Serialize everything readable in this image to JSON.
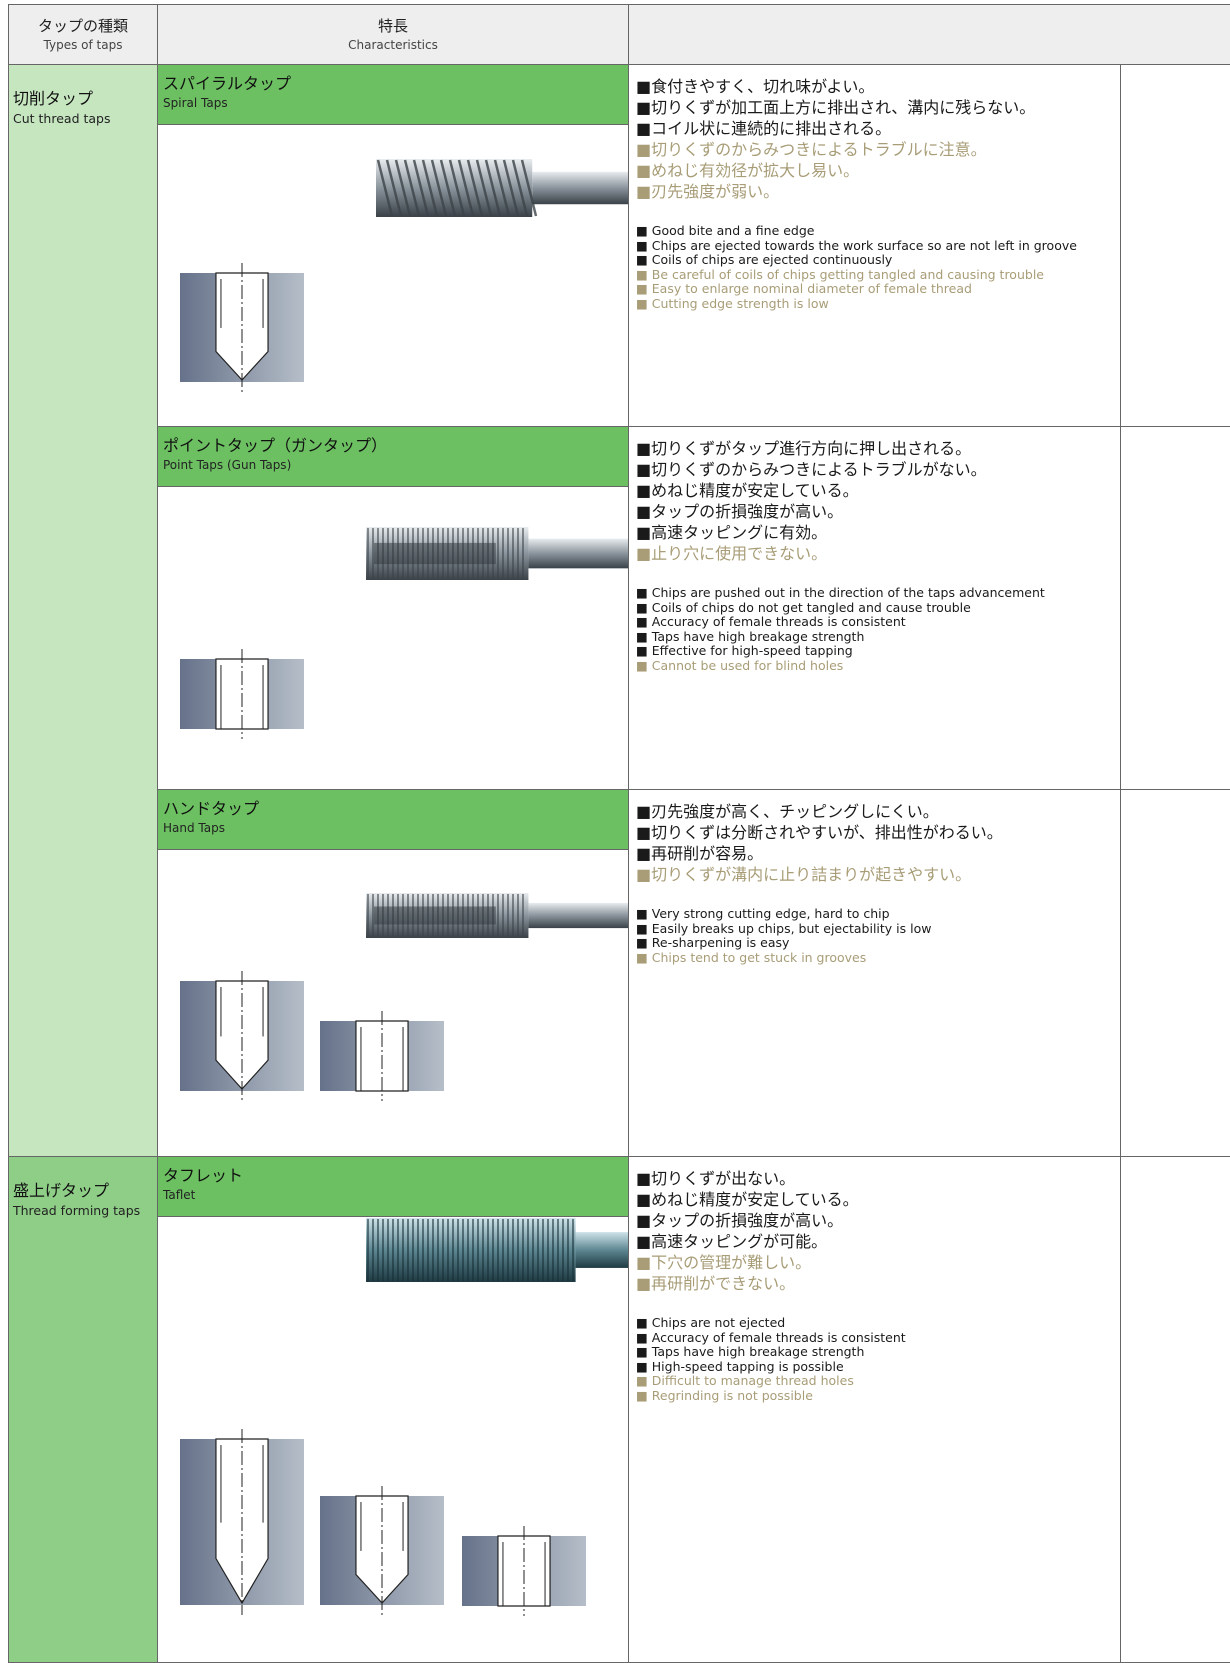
{
  "header": {
    "types_ja": "タップの種類",
    "types_en": "Types of taps",
    "characteristics_ja": "特長",
    "characteristics_en": "Characteristics"
  },
  "groups": [
    {
      "name_ja": "切削タップ",
      "name_en": "Cut thread taps",
      "rows": [
        {
          "name_ja": "スパイラルタップ",
          "name_en": "Spiral Taps",
          "features_ja": [
            "■食付きやすく、切れ味がよい。",
            "■切りくずが加工面上方に排出され、溝内に残らない。",
            "■コイル状に連続的に排出される。"
          ],
          "cautions_ja": [
            "■切りくずのからみつきによるトラブルに注意。",
            "■めねじ有効径が拡大し易い。",
            "■刃先強度が弱い。"
          ],
          "features_en": [
            "■ Good bite and a fine edge",
            "■ Chips are ejected towards the work surface so are not left in groove",
            "■ Coils of chips are ejected continuously"
          ],
          "cautions_en": [
            "■ Be careful of coils of chips getting tangled and causing trouble",
            "■ Easy to enlarge nominal diameter of female thread",
            "■ Cutting edge strength is low"
          ]
        },
        {
          "name_ja": "ポイントタップ（ガンタップ）",
          "name_en": "Point Taps (Gun Taps)",
          "features_ja": [
            "■切りくずがタップ進行方向に押し出される。",
            "■切りくずのからみつきによるトラブルがない。",
            "■めねじ精度が安定している。",
            "■タップの折損強度が高い。",
            "■高速タッピングに有効。"
          ],
          "cautions_ja": [
            "■止り穴に使用できない。"
          ],
          "features_en": [
            "■ Chips are pushed out in the direction of the taps advancement",
            "■ Coils of chips do not get tangled and cause trouble",
            "■ Accuracy of female threads is consistent",
            "■ Taps have high breakage strength",
            "■ Effective for high-speed tapping"
          ],
          "cautions_en": [
            "■ Cannot be used for blind holes"
          ]
        },
        {
          "name_ja": "ハンドタップ",
          "name_en": "Hand Taps",
          "features_ja": [
            "■刃先強度が高く、チッピングしにくい。",
            "■切りくずは分断されやすいが、排出性がわるい。",
            "■再研削が容易。"
          ],
          "cautions_ja": [
            "■切りくずが溝内に止り詰まりが起きやすい。"
          ],
          "features_en": [
            "■ Very strong cutting edge, hard to chip",
            "■ Easily breaks up chips, but ejectability is low",
            "■ Re-sharpening is easy"
          ],
          "cautions_en": [
            "■ Chips tend to get stuck in grooves"
          ]
        }
      ]
    },
    {
      "name_ja": "盛上げタップ",
      "name_en": "Thread forming taps",
      "rows": [
        {
          "name_ja": "タフレット",
          "name_en": "Taflet",
          "features_ja": [
            "■切りくずが出ない。",
            "■めねじ精度が安定している。",
            "■タップの折損強度が高い。",
            "■高速タッピングが可能。"
          ],
          "cautions_ja": [
            "■下穴の管理が難しい。",
            "■再研削ができない。"
          ],
          "features_en": [
            "■ Chips are not ejected",
            "■ Accuracy of female threads is consistent",
            "■ Taps have high breakage strength",
            "■ High-speed tapping is possible"
          ],
          "cautions_en": [
            "■ Difficult to manage thread holes",
            "■ Regrinding is not possible"
          ]
        }
      ]
    }
  ]
}
